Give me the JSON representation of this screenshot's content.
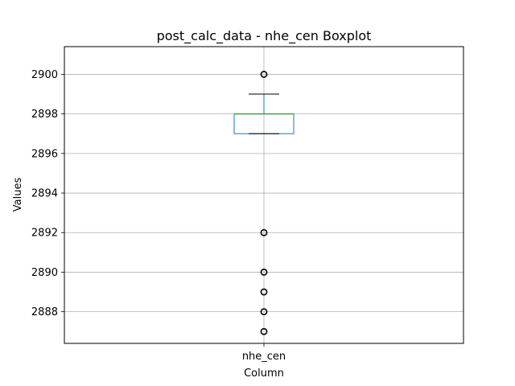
{
  "chart_data": {
    "type": "box",
    "title": "post_calc_data - nhe_cen Boxplot",
    "xlabel": "Column",
    "ylabel": "Values",
    "categories": [
      "nhe_cen"
    ],
    "ylim": [
      2886.4,
      2901.4
    ],
    "yticks": [
      2888,
      2890,
      2892,
      2894,
      2896,
      2898,
      2900
    ],
    "grid": true,
    "boxes": [
      {
        "category": "nhe_cen",
        "whisker_low": 2897,
        "q1": 2897,
        "median": 2898,
        "q3": 2898,
        "whisker_high": 2899,
        "outliers": [
          2900,
          2892,
          2890,
          2889,
          2888,
          2887
        ]
      }
    ],
    "colors": {
      "box": "#1f77b4",
      "median": "#2ca02c",
      "whisker": "#1f77b4",
      "cap": "#000000",
      "outlier": "#000000",
      "grid": "#b0b0b0"
    }
  }
}
